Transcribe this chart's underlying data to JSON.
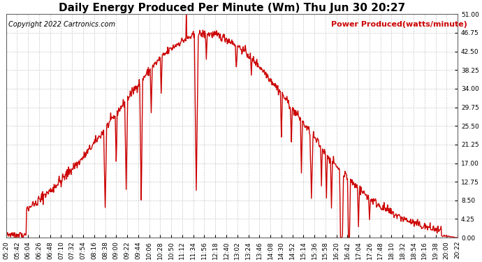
{
  "title": "Daily Energy Produced Per Minute (Wm) Thu Jun 30 20:27",
  "copyright": "Copyright 2022 Cartronics.com",
  "legend_label": "Power Produced(watts/minute)",
  "line_color": "#cc0000",
  "bg_color": "#ffffff",
  "grid_color": "#bbbbbb",
  "legend_color": "#cc0000",
  "copyright_color": "#000000",
  "ylim": [
    0,
    51.0
  ],
  "yticks": [
    0.0,
    4.25,
    8.5,
    12.75,
    17.0,
    21.25,
    25.5,
    29.75,
    34.0,
    38.25,
    42.5,
    46.75,
    51.0
  ],
  "xtick_labels": [
    "05:20",
    "05:42",
    "06:04",
    "06:26",
    "06:48",
    "07:10",
    "07:32",
    "07:54",
    "08:16",
    "08:38",
    "09:00",
    "09:22",
    "09:44",
    "10:06",
    "10:28",
    "10:50",
    "11:12",
    "11:34",
    "11:56",
    "12:18",
    "12:40",
    "13:02",
    "13:24",
    "13:46",
    "14:08",
    "14:30",
    "14:52",
    "15:14",
    "15:36",
    "15:58",
    "16:20",
    "16:42",
    "17:04",
    "17:26",
    "17:48",
    "18:10",
    "18:32",
    "18:54",
    "19:16",
    "19:38",
    "20:00",
    "20:22"
  ],
  "title_fontsize": 11,
  "copyright_fontsize": 7,
  "legend_fontsize": 8,
  "tick_fontsize": 6.5,
  "line_width": 1.0
}
